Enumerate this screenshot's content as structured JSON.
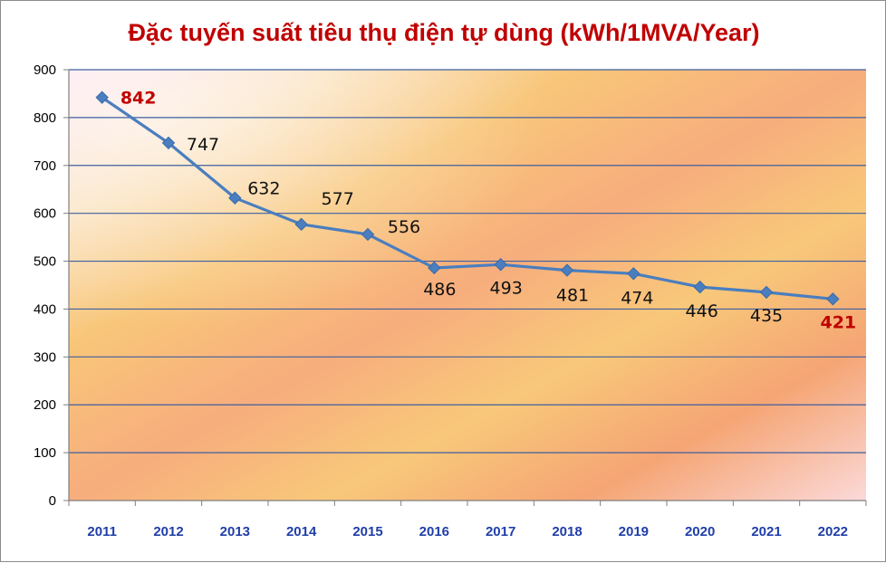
{
  "chart_data": {
    "type": "line",
    "title": "Đặc tuyến suất tiêu thụ điện tự dùng (kWh/1MVA/Year)",
    "xlabel": "",
    "ylabel": "",
    "categories": [
      "2011",
      "2012",
      "2013",
      "2014",
      "2015",
      "2016",
      "2017",
      "2018",
      "2019",
      "2020",
      "2021",
      "2022"
    ],
    "series": [
      {
        "values": [
          842,
          747,
          632,
          577,
          556,
          486,
          493,
          481,
          474,
          446,
          435,
          421
        ]
      }
    ],
    "highlighted_labels": [
      "842",
      "421"
    ],
    "ylim": [
      0,
      900
    ],
    "yticks": [
      "0",
      "100",
      "200",
      "300",
      "400",
      "500",
      "600",
      "700",
      "800",
      "900"
    ],
    "grid": "horizontal",
    "legend": "none",
    "colors": {
      "title": "#c00000",
      "line": "#4a7ebf",
      "marker": "#4a7ebf",
      "gridline": "#3f5f9f",
      "x_tick_labels": "#1f3ea8",
      "highlight_label": "#c00000"
    }
  }
}
